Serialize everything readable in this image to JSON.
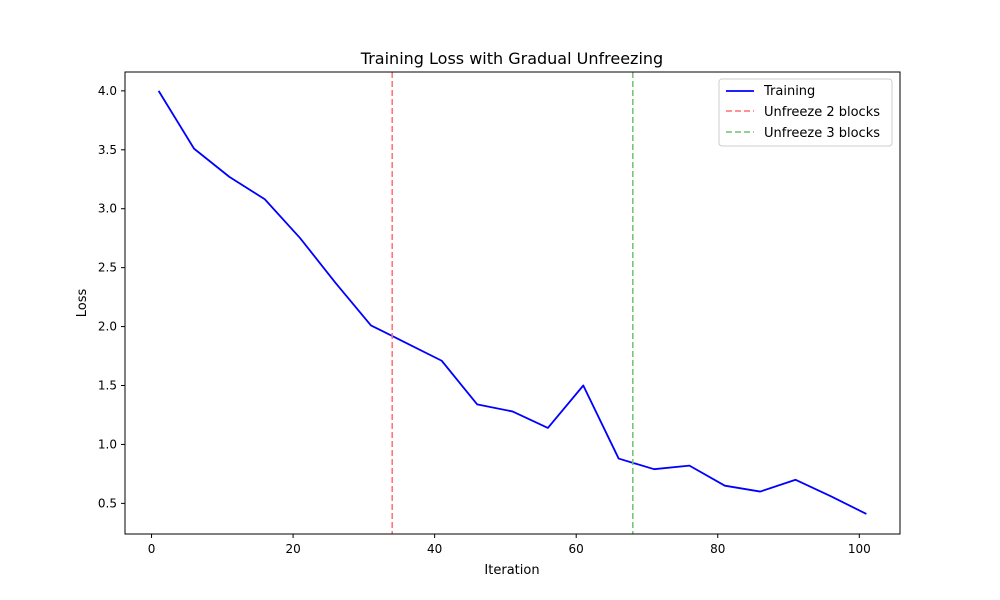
{
  "chart_data": {
    "type": "line",
    "title": "Training Loss with Gradual Unfreezing",
    "xlabel": "Iteration",
    "ylabel": "Loss",
    "xlim": [
      -3.75,
      105.75
    ],
    "ylim": [
      0.24,
      4.16
    ],
    "xticks": [
      0,
      20,
      40,
      60,
      80,
      100
    ],
    "yticks": [
      0.5,
      1.0,
      1.5,
      2.0,
      2.5,
      3.0,
      3.5,
      4.0
    ],
    "grid": false,
    "legend_position": "top-right",
    "series": [
      {
        "name": "Training",
        "color": "#0000ff",
        "style": "solid",
        "x": [
          1,
          6,
          11,
          16,
          21,
          26,
          31,
          36,
          41,
          46,
          51,
          56,
          61,
          66,
          71,
          76,
          81,
          86,
          91,
          96,
          101
        ],
        "y": [
          4.0,
          3.51,
          3.27,
          3.08,
          2.75,
          2.37,
          2.01,
          1.86,
          1.71,
          1.34,
          1.28,
          1.14,
          1.5,
          0.88,
          0.79,
          0.82,
          0.65,
          0.6,
          0.7,
          0.56,
          0.41
        ]
      }
    ],
    "vlines": [
      {
        "name": "Unfreeze 2 blocks",
        "x": 34,
        "color": "#ff6f6f",
        "style": "dashed"
      },
      {
        "name": "Unfreeze 3 blocks",
        "x": 68,
        "color": "#70c070",
        "style": "dashed"
      }
    ]
  }
}
